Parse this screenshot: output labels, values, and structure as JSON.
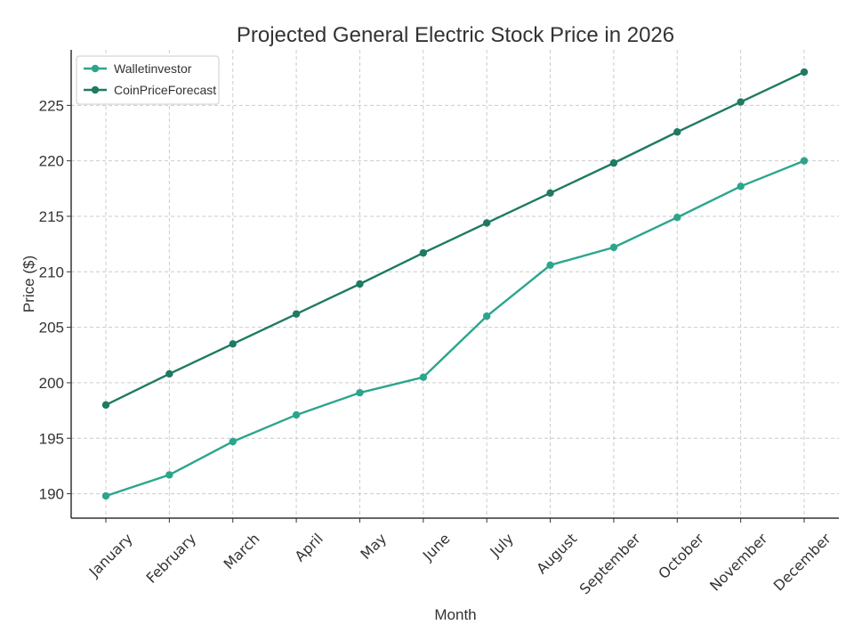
{
  "chart_data": {
    "type": "line",
    "title": "Projected General Electric Stock Price in 2026",
    "xlabel": "Month",
    "ylabel": "Price ($)",
    "categories": [
      "January",
      "February",
      "March",
      "April",
      "May",
      "June",
      "July",
      "August",
      "September",
      "October",
      "November",
      "December"
    ],
    "ylim": [
      187.8,
      230
    ],
    "yticks": [
      190,
      195,
      200,
      205,
      210,
      215,
      220,
      225
    ],
    "grid": true,
    "legend_position": "top-left",
    "series": [
      {
        "name": "Walletinvestor",
        "color": "#2ca58d",
        "values": [
          189.8,
          191.7,
          194.7,
          197.1,
          199.1,
          200.5,
          206.0,
          210.6,
          212.2,
          214.9,
          217.7,
          220.0
        ]
      },
      {
        "name": "CoinPriceForecast",
        "color": "#1f7a63",
        "values": [
          198.0,
          200.8,
          203.5,
          206.2,
          208.9,
          211.7,
          214.4,
          217.1,
          219.8,
          222.6,
          225.3,
          228.0
        ]
      }
    ]
  }
}
